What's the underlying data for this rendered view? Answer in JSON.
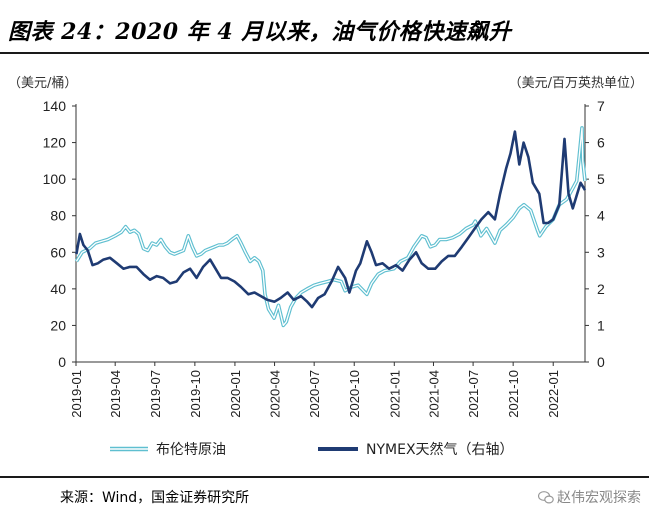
{
  "header": {
    "title": "图表 24：2020 年 4 月以来，油气价格快速飙升"
  },
  "source": {
    "text": "来源：Wind，国金证券研究所"
  },
  "watermark": {
    "text": "赵伟宏观探索"
  },
  "chart_data": {
    "type": "line",
    "title": "",
    "ylabel_left": "（美元/桶）",
    "ylabel_right": "（美元/百万英热单位）",
    "ylim_left": [
      0,
      140
    ],
    "yticks_left": [
      "0",
      "20",
      "40",
      "60",
      "80",
      "100",
      "120",
      "140"
    ],
    "ylim_right": [
      0,
      7
    ],
    "yticks_right": [
      "0",
      "1",
      "2",
      "3",
      "4",
      "5",
      "6",
      "7"
    ],
    "xtick_labels": [
      "2019-01",
      "2019-04",
      "2019-07",
      "2019-10",
      "2020-01",
      "2020-04",
      "2020-07",
      "2020-10",
      "2021-01",
      "2021-04",
      "2021-07",
      "2021-10",
      "2022-01"
    ],
    "xlim": [
      "2019-01-01",
      "2022-03-15"
    ],
    "grid": false,
    "legend_position": "bottom",
    "series": [
      {
        "name": "布伦特原油",
        "axis": "left",
        "color": "#5fbfd0",
        "style": "double-outline",
        "points": [
          [
            "2019-01-02",
            55
          ],
          [
            "2019-01-15",
            60
          ],
          [
            "2019-02-01",
            62
          ],
          [
            "2019-02-15",
            65
          ],
          [
            "2019-03-01",
            66
          ],
          [
            "2019-03-15",
            67
          ],
          [
            "2019-04-01",
            69
          ],
          [
            "2019-04-15",
            71
          ],
          [
            "2019-04-25",
            74
          ],
          [
            "2019-05-05",
            71
          ],
          [
            "2019-05-15",
            72
          ],
          [
            "2019-05-25",
            70
          ],
          [
            "2019-06-05",
            62
          ],
          [
            "2019-06-15",
            61
          ],
          [
            "2019-06-25",
            65
          ],
          [
            "2019-07-05",
            64
          ],
          [
            "2019-07-15",
            67
          ],
          [
            "2019-07-25",
            63
          ],
          [
            "2019-08-05",
            60
          ],
          [
            "2019-08-15",
            59
          ],
          [
            "2019-08-25",
            60
          ],
          [
            "2019-09-05",
            61
          ],
          [
            "2019-09-16",
            69
          ],
          [
            "2019-09-25",
            63
          ],
          [
            "2019-10-05",
            58
          ],
          [
            "2019-10-15",
            59
          ],
          [
            "2019-10-25",
            61
          ],
          [
            "2019-11-05",
            62
          ],
          [
            "2019-11-15",
            63
          ],
          [
            "2019-11-25",
            64
          ],
          [
            "2019-12-05",
            64
          ],
          [
            "2019-12-15",
            65
          ],
          [
            "2019-12-25",
            67
          ],
          [
            "2020-01-06",
            69
          ],
          [
            "2020-01-15",
            65
          ],
          [
            "2020-01-25",
            60
          ],
          [
            "2020-02-05",
            55
          ],
          [
            "2020-02-15",
            57
          ],
          [
            "2020-02-25",
            55
          ],
          [
            "2020-03-05",
            50
          ],
          [
            "2020-03-10",
            37
          ],
          [
            "2020-03-18",
            29
          ],
          [
            "2020-03-31",
            24
          ],
          [
            "2020-04-10",
            31
          ],
          [
            "2020-04-21",
            20
          ],
          [
            "2020-04-28",
            22
          ],
          [
            "2020-05-08",
            30
          ],
          [
            "2020-05-20",
            35
          ],
          [
            "2020-06-01",
            38
          ],
          [
            "2020-06-15",
            40
          ],
          [
            "2020-07-01",
            42
          ],
          [
            "2020-07-15",
            43
          ],
          [
            "2020-08-01",
            44
          ],
          [
            "2020-08-15",
            45
          ],
          [
            "2020-09-01",
            44
          ],
          [
            "2020-09-10",
            39
          ],
          [
            "2020-09-25",
            41
          ],
          [
            "2020-10-10",
            42
          ],
          [
            "2020-10-30",
            37
          ],
          [
            "2020-11-10",
            43
          ],
          [
            "2020-11-25",
            48
          ],
          [
            "2020-12-10",
            50
          ],
          [
            "2020-12-31",
            51
          ],
          [
            "2021-01-15",
            55
          ],
          [
            "2021-02-01",
            57
          ],
          [
            "2021-02-15",
            63
          ],
          [
            "2021-03-05",
            69
          ],
          [
            "2021-03-15",
            68
          ],
          [
            "2021-03-25",
            63
          ],
          [
            "2021-04-05",
            64
          ],
          [
            "2021-04-15",
            67
          ],
          [
            "2021-04-30",
            67
          ],
          [
            "2021-05-15",
            68
          ],
          [
            "2021-05-31",
            70
          ],
          [
            "2021-06-15",
            73
          ],
          [
            "2021-07-01",
            75
          ],
          [
            "2021-07-06",
            77
          ],
          [
            "2021-07-19",
            69
          ],
          [
            "2021-08-01",
            73
          ],
          [
            "2021-08-20",
            65
          ],
          [
            "2021-09-01",
            72
          ],
          [
            "2021-09-15",
            75
          ],
          [
            "2021-10-01",
            79
          ],
          [
            "2021-10-15",
            84
          ],
          [
            "2021-10-26",
            86
          ],
          [
            "2021-11-10",
            83
          ],
          [
            "2021-11-26",
            72
          ],
          [
            "2021-12-01",
            69
          ],
          [
            "2021-12-15",
            74
          ],
          [
            "2022-01-01",
            78
          ],
          [
            "2022-01-15",
            86
          ],
          [
            "2022-02-01",
            89
          ],
          [
            "2022-02-15",
            95
          ],
          [
            "2022-02-24",
            99
          ],
          [
            "2022-03-02",
            113
          ],
          [
            "2022-03-08",
            128
          ],
          [
            "2022-03-10",
            110
          ],
          [
            "2022-03-15",
            99
          ]
        ]
      },
      {
        "name": "NYMEX天然气（右轴）",
        "axis": "right",
        "color": "#1f3b73",
        "style": "solid",
        "points": [
          [
            "2019-01-02",
            2.95
          ],
          [
            "2019-01-10",
            3.5
          ],
          [
            "2019-01-18",
            3.2
          ],
          [
            "2019-01-28",
            3.05
          ],
          [
            "2019-02-08",
            2.65
          ],
          [
            "2019-02-20",
            2.7
          ],
          [
            "2019-03-05",
            2.8
          ],
          [
            "2019-03-20",
            2.85
          ],
          [
            "2019-04-05",
            2.7
          ],
          [
            "2019-04-20",
            2.55
          ],
          [
            "2019-05-05",
            2.6
          ],
          [
            "2019-05-20",
            2.6
          ],
          [
            "2019-06-05",
            2.4
          ],
          [
            "2019-06-20",
            2.25
          ],
          [
            "2019-07-05",
            2.35
          ],
          [
            "2019-07-20",
            2.3
          ],
          [
            "2019-08-05",
            2.15
          ],
          [
            "2019-08-20",
            2.2
          ],
          [
            "2019-09-05",
            2.45
          ],
          [
            "2019-09-20",
            2.55
          ],
          [
            "2019-10-05",
            2.3
          ],
          [
            "2019-10-20",
            2.6
          ],
          [
            "2019-11-05",
            2.8
          ],
          [
            "2019-11-15",
            2.6
          ],
          [
            "2019-11-30",
            2.3
          ],
          [
            "2019-12-15",
            2.3
          ],
          [
            "2019-12-31",
            2.2
          ],
          [
            "2020-01-15",
            2.05
          ],
          [
            "2020-02-01",
            1.85
          ],
          [
            "2020-02-15",
            1.9
          ],
          [
            "2020-03-01",
            1.8
          ],
          [
            "2020-03-15",
            1.7
          ],
          [
            "2020-04-01",
            1.65
          ],
          [
            "2020-04-15",
            1.75
          ],
          [
            "2020-05-01",
            1.9
          ],
          [
            "2020-05-15",
            1.7
          ],
          [
            "2020-06-01",
            1.8
          ],
          [
            "2020-06-15",
            1.65
          ],
          [
            "2020-06-26",
            1.5
          ],
          [
            "2020-07-10",
            1.75
          ],
          [
            "2020-07-25",
            1.85
          ],
          [
            "2020-08-10",
            2.2
          ],
          [
            "2020-08-25",
            2.6
          ],
          [
            "2020-09-10",
            2.3
          ],
          [
            "2020-09-20",
            1.9
          ],
          [
            "2020-10-05",
            2.5
          ],
          [
            "2020-10-15",
            2.7
          ],
          [
            "2020-10-30",
            3.3
          ],
          [
            "2020-11-10",
            3.0
          ],
          [
            "2020-11-20",
            2.65
          ],
          [
            "2020-12-05",
            2.7
          ],
          [
            "2020-12-20",
            2.55
          ],
          [
            "2021-01-05",
            2.65
          ],
          [
            "2021-01-20",
            2.5
          ],
          [
            "2021-02-05",
            2.8
          ],
          [
            "2021-02-20",
            3.0
          ],
          [
            "2021-03-05",
            2.7
          ],
          [
            "2021-03-20",
            2.55
          ],
          [
            "2021-04-05",
            2.55
          ],
          [
            "2021-04-20",
            2.75
          ],
          [
            "2021-05-05",
            2.9
          ],
          [
            "2021-05-20",
            2.9
          ],
          [
            "2021-06-05",
            3.15
          ],
          [
            "2021-06-20",
            3.4
          ],
          [
            "2021-07-05",
            3.65
          ],
          [
            "2021-07-20",
            3.9
          ],
          [
            "2021-08-05",
            4.1
          ],
          [
            "2021-08-20",
            3.9
          ],
          [
            "2021-09-01",
            4.6
          ],
          [
            "2021-09-15",
            5.3
          ],
          [
            "2021-09-25",
            5.7
          ],
          [
            "2021-10-05",
            6.3
          ],
          [
            "2021-10-15",
            5.4
          ],
          [
            "2021-10-25",
            6.0
          ],
          [
            "2021-11-05",
            5.6
          ],
          [
            "2021-11-15",
            4.9
          ],
          [
            "2021-11-30",
            4.6
          ],
          [
            "2021-12-10",
            3.8
          ],
          [
            "2021-12-20",
            3.8
          ],
          [
            "2022-01-01",
            3.9
          ],
          [
            "2022-01-15",
            4.3
          ],
          [
            "2022-01-27",
            6.1
          ],
          [
            "2022-02-05",
            4.6
          ],
          [
            "2022-02-15",
            4.2
          ],
          [
            "2022-02-25",
            4.6
          ],
          [
            "2022-03-05",
            4.9
          ],
          [
            "2022-03-15",
            4.7
          ]
        ]
      }
    ]
  }
}
